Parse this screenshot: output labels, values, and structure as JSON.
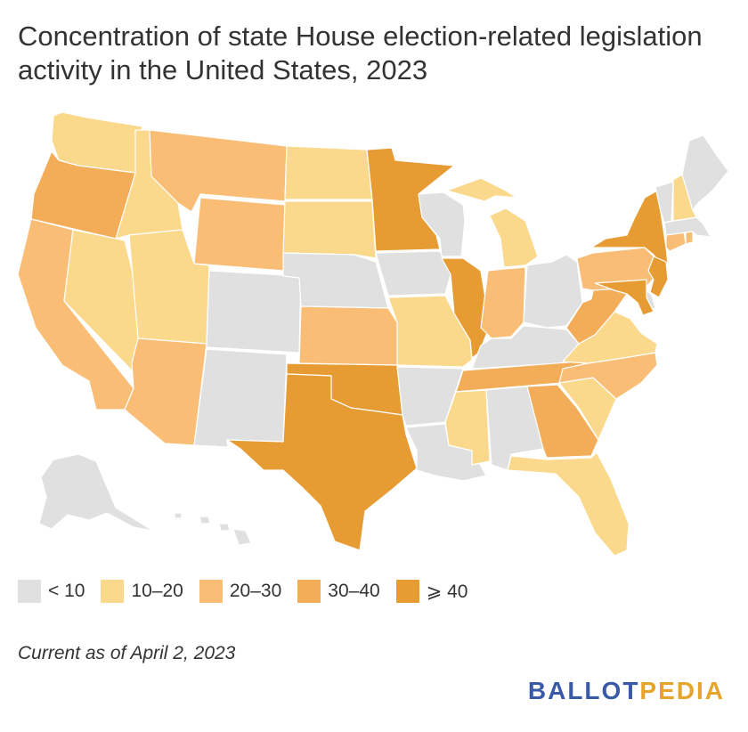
{
  "title": "Concentration of state House election-related legislation activity in the United States, 2023",
  "colors": {
    "lt10": "#e0e0e0",
    "10to20": "#fbd98c",
    "20to30": "#f9bd75",
    "30to40": "#f3ac58",
    "ge40": "#e69c33",
    "background": "#ffffff",
    "logo_blue": "#3a5aa8",
    "logo_gold": "#e6a52a"
  },
  "legend": [
    {
      "label": "< 10",
      "bin": "lt10"
    },
    {
      "label": "10–20",
      "bin": "10to20"
    },
    {
      "label": "20–30",
      "bin": "20to30"
    },
    {
      "label": "30–40",
      "bin": "30to40"
    },
    {
      "label": "⩾ 40",
      "bin": "ge40"
    }
  ],
  "states": {
    "WA": "10to20",
    "OR": "30to40",
    "CA": "20to30",
    "NV": "10to20",
    "ID": "10to20",
    "MT": "20to30",
    "WY": "20to30",
    "UT": "10to20",
    "AZ": "20to30",
    "CO": "lt10",
    "NM": "lt10",
    "ND": "10to20",
    "SD": "10to20",
    "NE": "lt10",
    "KS": "20to30",
    "OK": "ge40",
    "TX": "ge40",
    "MN": "ge40",
    "IA": "lt10",
    "MO": "10to20",
    "AR": "lt10",
    "LA": "lt10",
    "WI": "lt10",
    "IL": "ge40",
    "MI": "10to20",
    "IN": "20to30",
    "OH": "lt10",
    "KY": "lt10",
    "TN": "30to40",
    "MS": "10to20",
    "AL": "lt10",
    "GA": "30to40",
    "FL": "10to20",
    "SC": "10to20",
    "NC": "20to30",
    "VA": "10to20",
    "WV": "30to40",
    "PA": "20to30",
    "NY": "ge40",
    "NJ": "ge40",
    "DE": "lt10",
    "MD": "ge40",
    "CT": "20to30",
    "RI": "20to30",
    "MA": "lt10",
    "VT": "lt10",
    "NH": "10to20",
    "ME": "lt10",
    "AK": "lt10",
    "HI": "lt10"
  },
  "note": "Current as of April 2, 2023",
  "logo": {
    "part1": "BALLOT",
    "part2": "PEDIA"
  }
}
